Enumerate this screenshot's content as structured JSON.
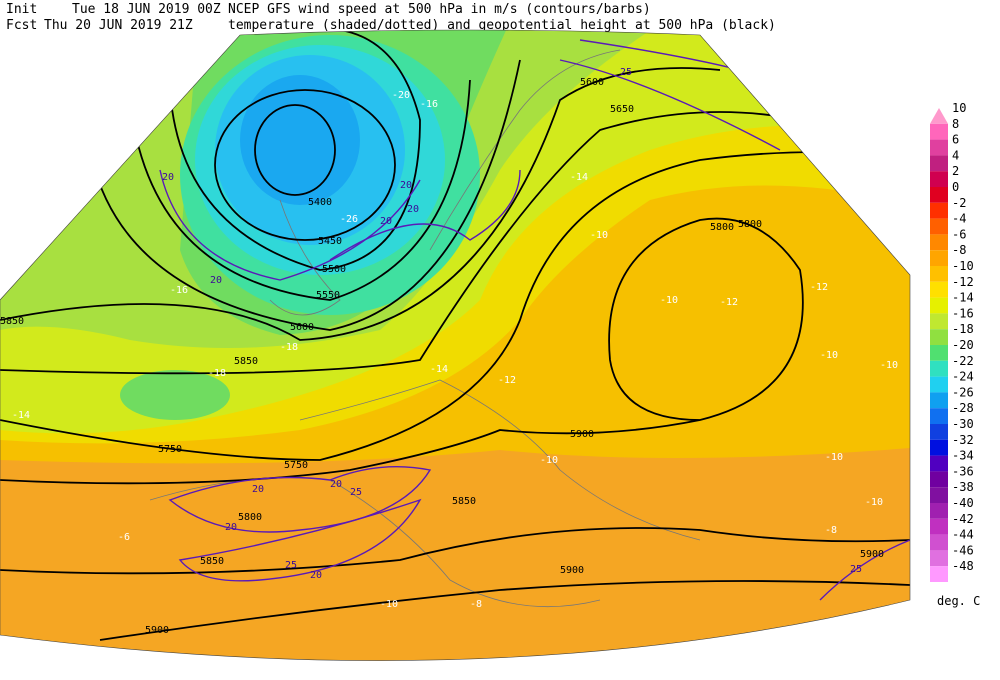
{
  "header": {
    "init_label": "Init",
    "init_time": "Tue 18 JUN 2019 00Z",
    "fcst_label": "Fcst",
    "fcst_time": "Thu 20 JUN 2019 21Z",
    "line1": "NCEP GFS wind speed at 500 hPa in m/s (contours/barbs)",
    "line2": "temperature (shaded/dotted) and geopotential height at 500 hPa (black)"
  },
  "map": {
    "height_labels": [
      5400,
      5450,
      5500,
      5550,
      5600,
      5850,
      5850,
      5750,
      5750,
      5800,
      5850,
      5900,
      5900,
      5800,
      5900,
      5850,
      5900,
      5600,
      5650,
      5800
    ],
    "temperature_labels": [
      -26,
      -20,
      -16,
      -16,
      -18,
      -18,
      -14,
      -14,
      -14,
      -12,
      -12,
      -10,
      -10,
      -10,
      -10,
      -10,
      -10,
      -10,
      -8,
      -6,
      -8,
      -10,
      -12
    ],
    "wind_labels": [
      20,
      20,
      20,
      20,
      20,
      25,
      20,
      20,
      20,
      25,
      25,
      20,
      25
    ]
  },
  "colorbar": {
    "ticks": [
      10,
      8,
      6,
      4,
      2,
      0,
      -2,
      -4,
      -6,
      -8,
      -10,
      -12,
      -14,
      -16,
      -18,
      -20,
      -22,
      -24,
      -26,
      -28,
      -30,
      -32,
      -34,
      -36,
      -38,
      -40,
      -42,
      -44,
      -46,
      -48
    ],
    "colors": [
      "#ff99cc",
      "#ff66bb",
      "#e0409f",
      "#c02080",
      "#d00050",
      "#e00020",
      "#ff3000",
      "#ff6000",
      "#ff8800",
      "#ffa500",
      "#ffc000",
      "#ffe000",
      "#e6f000",
      "#c0e830",
      "#90e040",
      "#50e070",
      "#30e0c0",
      "#20d0f0",
      "#10a0f0",
      "#1070f0",
      "#1040e0",
      "#0010e0",
      "#5000c0",
      "#7000a0",
      "#8010a0",
      "#a020b0",
      "#c030c0",
      "#d050d0",
      "#e070e0",
      "#ff99ff"
    ],
    "unit": "deg. C"
  }
}
